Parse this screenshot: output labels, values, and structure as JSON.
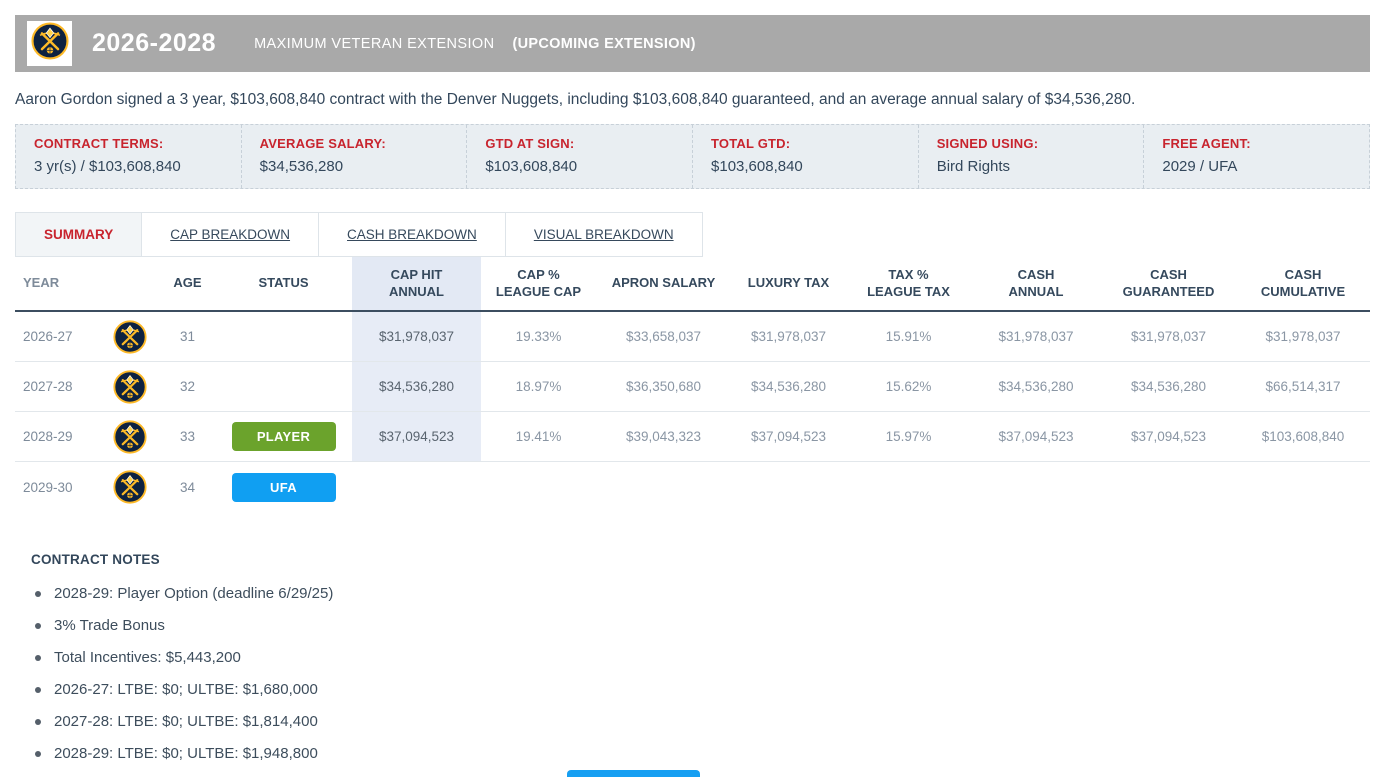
{
  "header": {
    "years": "2026-2028",
    "type": "MAXIMUM VETERAN EXTENSION",
    "status": "(UPCOMING EXTENSION)",
    "team_logo_icon": "denver-nuggets-logo"
  },
  "description": "Aaron Gordon signed a 3 year, $103,608,840 contract with the Denver Nuggets, including $103,608,840 guaranteed, and an average annual salary of $34,536,280.",
  "contract_terms": [
    {
      "label": "CONTRACT TERMS:",
      "value": "3 yr(s) / $103,608,840"
    },
    {
      "label": "AVERAGE SALARY:",
      "value": "$34,536,280"
    },
    {
      "label": "GTD AT SIGN:",
      "value": "$103,608,840"
    },
    {
      "label": "TOTAL GTD:",
      "value": "$103,608,840"
    },
    {
      "label": "SIGNED USING:",
      "value": "Bird Rights"
    },
    {
      "label": "FREE AGENT:",
      "value": "2029 / UFA"
    }
  ],
  "tabs": [
    {
      "label": "SUMMARY",
      "active": true
    },
    {
      "label": "CAP BREAKDOWN",
      "active": false
    },
    {
      "label": "CASH BREAKDOWN",
      "active": false
    },
    {
      "label": "VISUAL BREAKDOWN",
      "active": false
    }
  ],
  "table": {
    "columns": [
      "YEAR",
      "",
      "AGE",
      "STATUS",
      "CAP HIT\nANNUAL",
      "CAP %\nLEAGUE CAP",
      "APRON SALARY",
      "LUXURY TAX",
      "TAX %\nLEAGUE TAX",
      "CASH\nANNUAL",
      "CASH\nGUARANTEED",
      "CASH\nCUMULATIVE"
    ],
    "highlight_column": "CAP HIT ANNUAL",
    "highlight_color": "#e7ecf6",
    "rows": [
      {
        "year": "2026-27",
        "age": "31",
        "badge": null,
        "cap_hit": "$31,978,037",
        "cap_pct": "19.33%",
        "apron_salary": "$33,658,037",
        "luxury_tax": "$31,978,037",
        "tax_pct": "15.91%",
        "cash_annual": "$31,978,037",
        "cash_guaranteed": "$31,978,037",
        "cash_cumulative": "$31,978,037",
        "highlight": true
      },
      {
        "year": "2027-28",
        "age": "32",
        "badge": null,
        "cap_hit": "$34,536,280",
        "cap_pct": "18.97%",
        "apron_salary": "$36,350,680",
        "luxury_tax": "$34,536,280",
        "tax_pct": "15.62%",
        "cash_annual": "$34,536,280",
        "cash_guaranteed": "$34,536,280",
        "cash_cumulative": "$66,514,317",
        "highlight": true
      },
      {
        "year": "2028-29",
        "age": "33",
        "badge": {
          "label": "PLAYER",
          "color": "#6ba32c"
        },
        "cap_hit": "$37,094,523",
        "cap_pct": "19.41%",
        "apron_salary": "$39,043,323",
        "luxury_tax": "$37,094,523",
        "tax_pct": "15.97%",
        "cash_annual": "$37,094,523",
        "cash_guaranteed": "$37,094,523",
        "cash_cumulative": "$103,608,840",
        "highlight": true
      },
      {
        "year": "2029-30",
        "age": "34",
        "badge": {
          "label": "UFA",
          "color": "#109ff2"
        },
        "cap_hit": "",
        "cap_pct": "",
        "apron_salary": "",
        "luxury_tax": "",
        "tax_pct": "",
        "cash_annual": "",
        "cash_guaranteed": "",
        "cash_cumulative": "",
        "highlight": false
      }
    ]
  },
  "notes": {
    "title": "CONTRACT NOTES",
    "items": [
      "2028-29: Player Option (deadline 6/29/25)",
      "3% Trade Bonus",
      "Total Incentives: $5,443,200",
      "2026-27: LTBE: $0; ULTBE: $1,680,000",
      "2027-28: LTBE: $0; ULTBE: $1,814,400",
      "2028-29: LTBE: $0; ULTBE: $1,948,800"
    ]
  },
  "colors": {
    "accent_red": "#c8242e",
    "bar_gray": "#a9a9a9",
    "badge_player_green": "#6ba32c",
    "badge_ufa_blue": "#109ff2",
    "text_dark": "#33475b"
  }
}
